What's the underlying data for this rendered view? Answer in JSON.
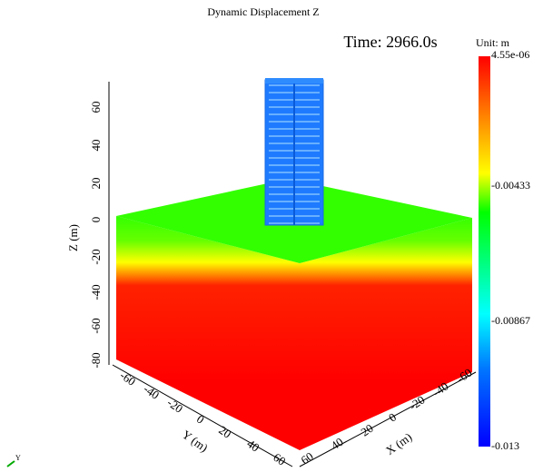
{
  "title": "Dynamic Displacement Z",
  "time_label": "Time: 2966.0s",
  "colorbar": {
    "unit_label": "Unit:   m",
    "ticks": [
      "4.55e-06",
      "-0.00433",
      "-0.00867",
      "-0.013"
    ]
  },
  "axes": {
    "z_label": "Z (m)",
    "z_ticks": [
      "60",
      "40",
      "20",
      "0",
      "-20",
      "-40",
      "-60",
      "-80"
    ],
    "y_label": "Y (m)",
    "y_ticks": [
      "-60",
      "-40",
      "-20",
      "0",
      "20",
      "40",
      "60"
    ],
    "x_label": "X (m)",
    "x_ticks": [
      "60",
      "40",
      "20",
      "0",
      "-20",
      "-40",
      "-60"
    ]
  },
  "orientation_label": "Y"
}
